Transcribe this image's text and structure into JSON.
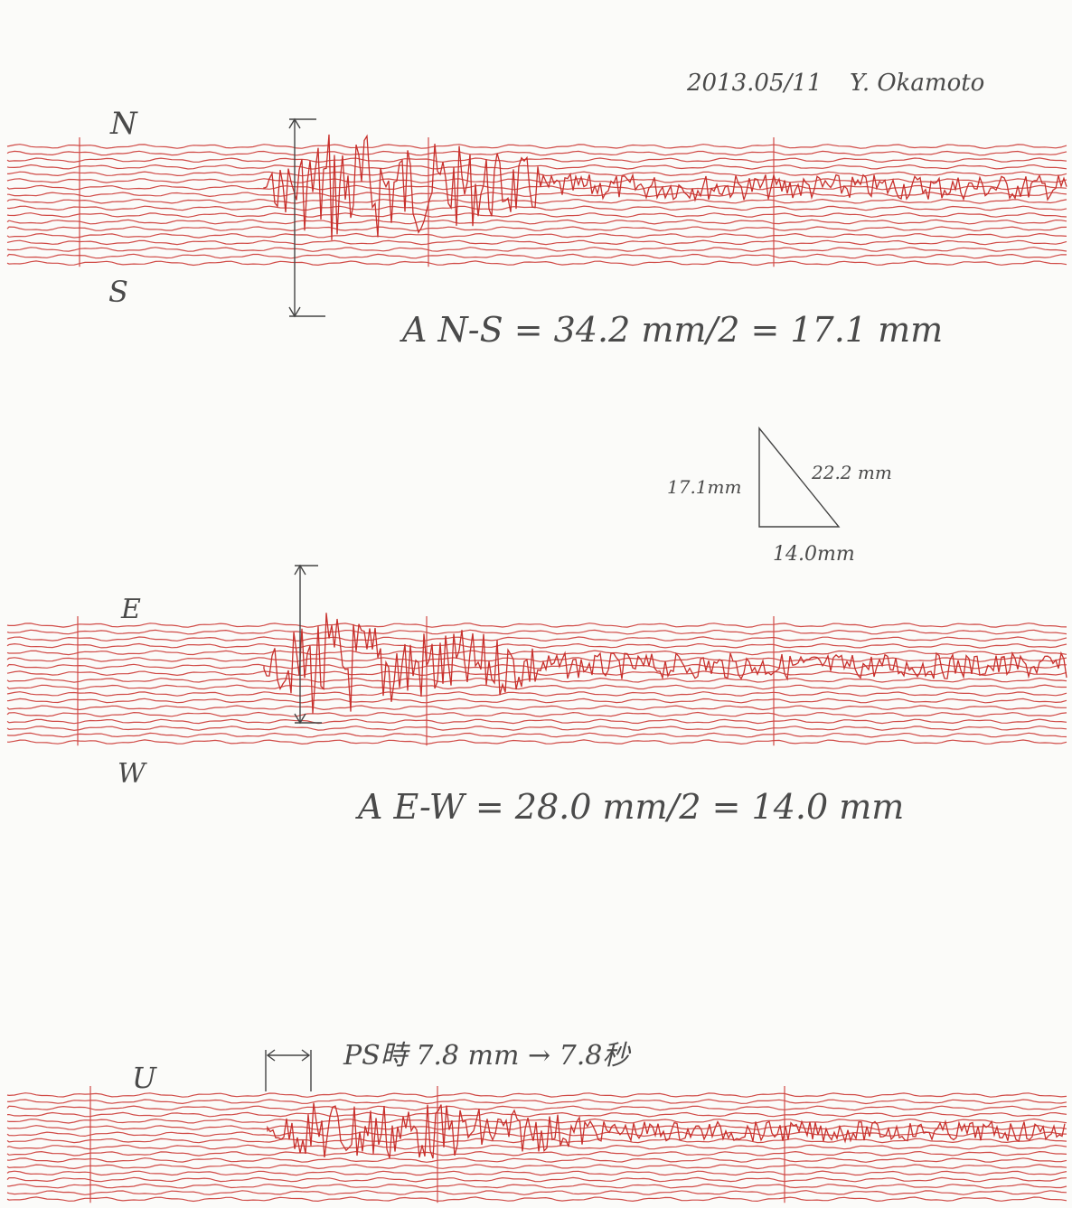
{
  "header": {
    "date": "2013.05/11",
    "author": "Y. Okamoto"
  },
  "panels": {
    "ns": {
      "top_label": "N",
      "bottom_label": "S",
      "amplitude_note": "A N-S = 34.2 mm/2 = 17.1 mm"
    },
    "ew": {
      "top_label": "E",
      "bottom_label": "W",
      "amplitude_note": "A E-W = 28.0 mm/2 = 14.0 mm"
    },
    "ud": {
      "top_label": "U",
      "ps_note": "PS時 7.8 mm → 7.8秒"
    }
  },
  "triangle": {
    "vertical": "17.1mm",
    "hypotenuse": "22.2 mm",
    "base": "14.0mm"
  },
  "colors": {
    "trace": "#d04a46",
    "ink": "#444444",
    "paper": "#fbfbf9"
  }
}
